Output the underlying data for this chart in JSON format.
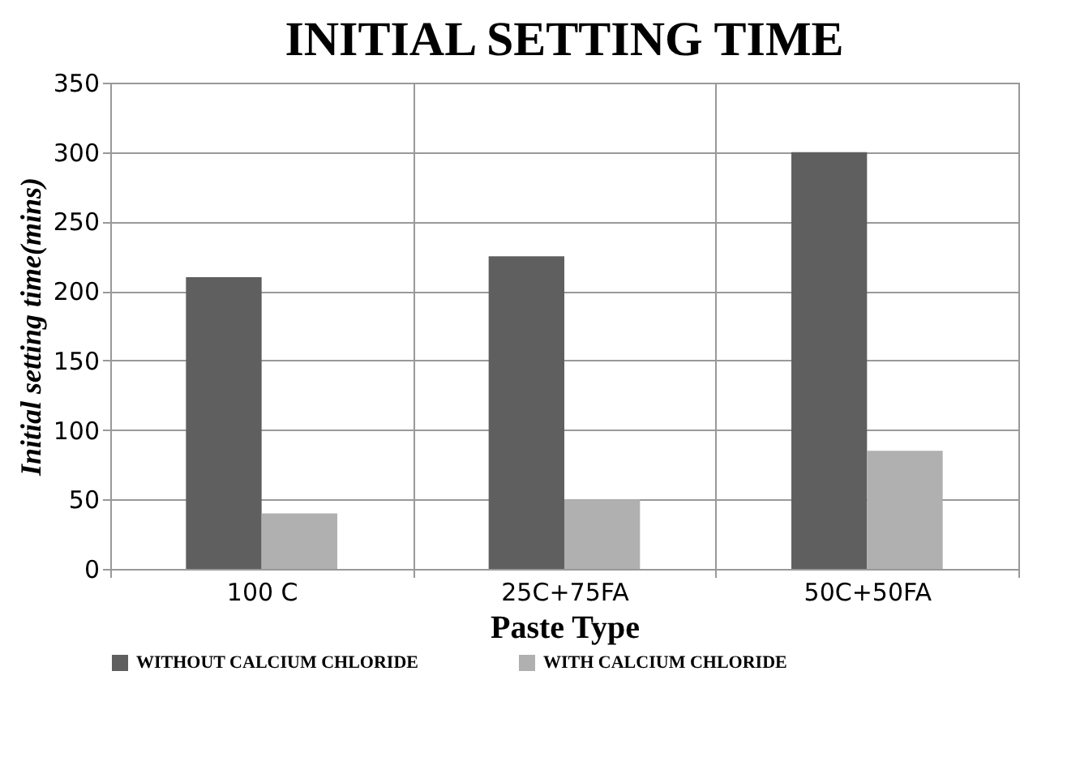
{
  "chart_data": {
    "type": "bar",
    "title": "INITIAL SETTING TIME",
    "xlabel": "Paste Type",
    "ylabel": "Initial setting time(mins)",
    "categories": [
      "100 C",
      "25C+75FA",
      "50C+50FA"
    ],
    "series": [
      {
        "name": "WITHOUT CALCIUM CHLORIDE",
        "color": "#5f5f5f",
        "values": [
          210,
          225,
          300
        ]
      },
      {
        "name": "WITH CALCIUM CHLORIDE",
        "color": "#b0b0b0",
        "values": [
          40,
          50,
          85
        ]
      }
    ],
    "ylim": [
      0,
      350
    ],
    "yticks": [
      0,
      50,
      100,
      150,
      200,
      250,
      300,
      350
    ],
    "grid": true,
    "legend": "bottom"
  }
}
